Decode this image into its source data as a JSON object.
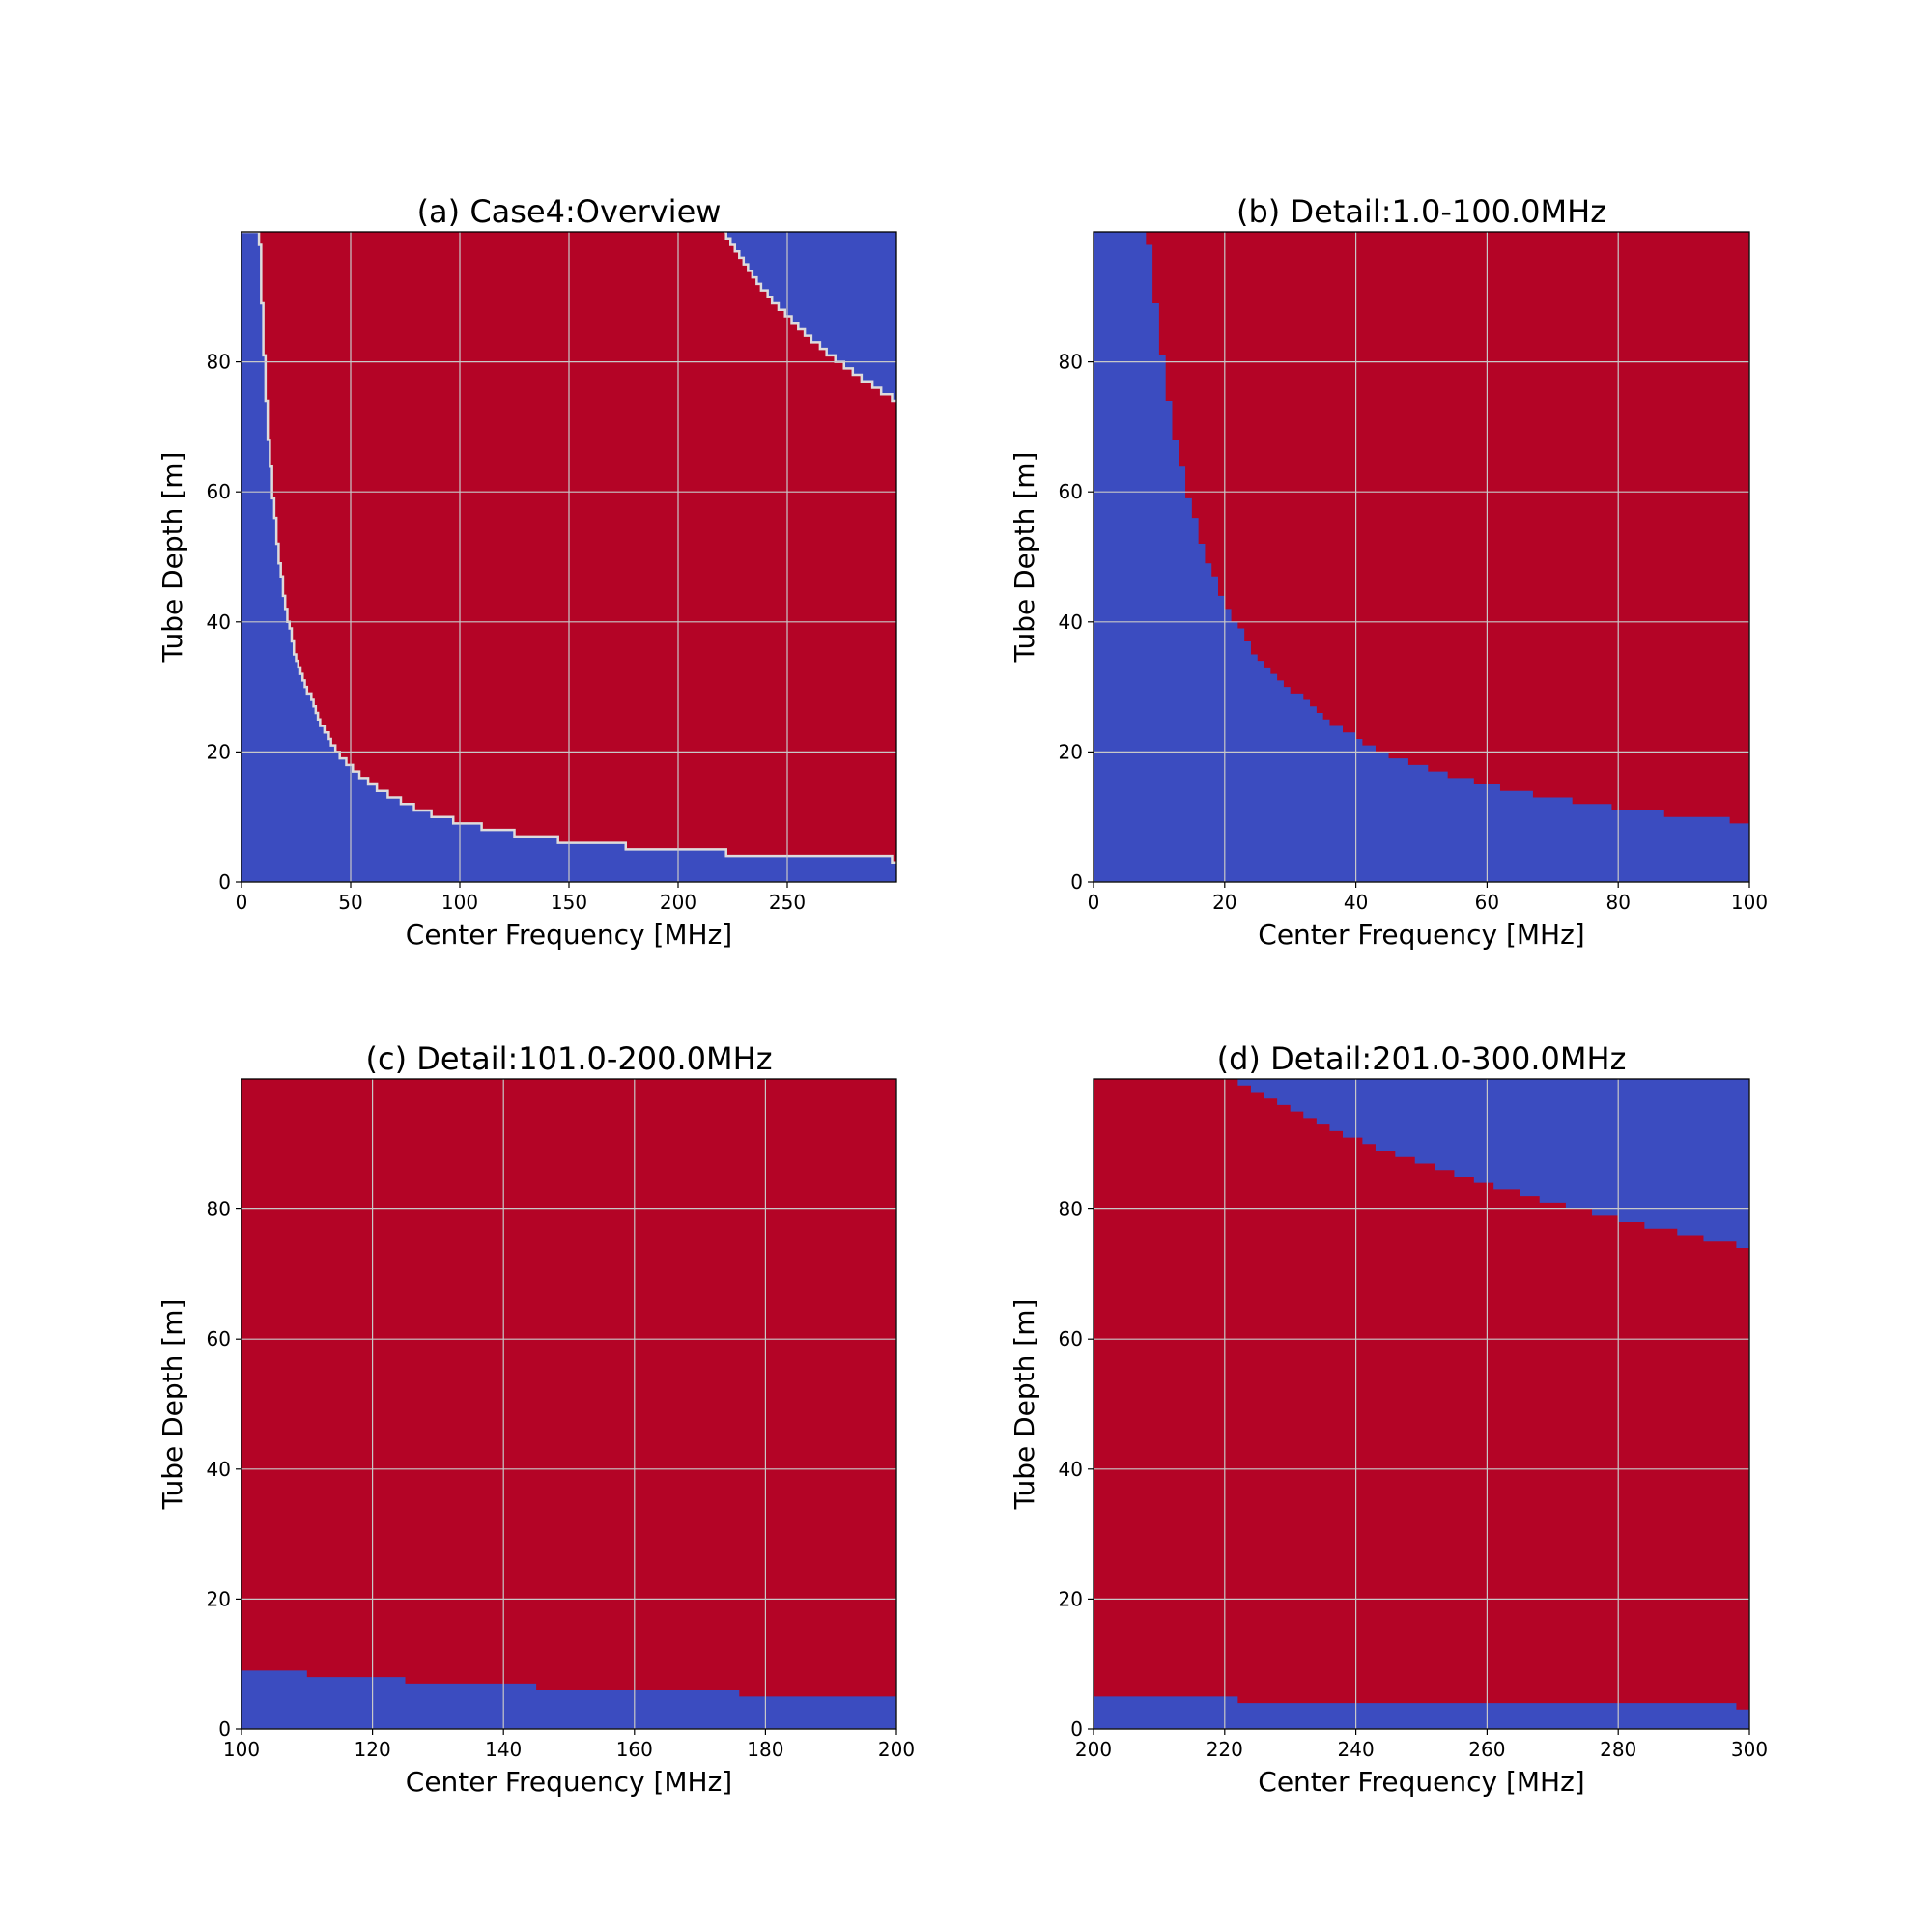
{
  "colors": {
    "low": "#3b4cc0",
    "high": "#b40426",
    "grid": "#c8c8c8",
    "boundary": "#dddcdc"
  },
  "chart_data": [
    {
      "type": "heatmap",
      "title": "(a) Case4:Overview",
      "xlabel": "Center Frequency [MHz]",
      "ylabel": "Tube Depth [m]",
      "xlim": [
        0,
        300
      ],
      "ylim": [
        0,
        100
      ],
      "xticks": [
        0,
        50,
        100,
        150,
        200,
        250
      ],
      "yticks": [
        0,
        20,
        40,
        60,
        80
      ],
      "grid": true,
      "show_boundary_line": true,
      "regions": "blue below lower boundary and above upper boundary, red in between"
    },
    {
      "type": "heatmap",
      "title": "(b) Detail:1.0-100.0MHz",
      "xlabel": "Center Frequency [MHz]",
      "ylabel": "Tube Depth [m]",
      "xlim": [
        0,
        100
      ],
      "ylim": [
        0,
        100
      ],
      "xticks": [
        0,
        20,
        40,
        60,
        80,
        100
      ],
      "yticks": [
        0,
        20,
        40,
        60,
        80
      ],
      "grid": true,
      "show_boundary_line": false
    },
    {
      "type": "heatmap",
      "title": "(c) Detail:101.0-200.0MHz",
      "xlabel": "Center Frequency [MHz]",
      "ylabel": "Tube Depth [m]",
      "xlim": [
        100,
        200
      ],
      "ylim": [
        0,
        100
      ],
      "xticks": [
        100,
        120,
        140,
        160,
        180,
        200
      ],
      "yticks": [
        0,
        20,
        40,
        60,
        80
      ],
      "grid": true,
      "show_boundary_line": false
    },
    {
      "type": "heatmap",
      "title": "(d) Detail:201.0-300.0MHz",
      "xlabel": "Center Frequency [MHz]",
      "ylabel": "Tube Depth [m]",
      "xlim": [
        200,
        300
      ],
      "ylim": [
        0,
        100
      ],
      "xticks": [
        200,
        220,
        240,
        260,
        280,
        300
      ],
      "yticks": [
        0,
        20,
        40,
        60,
        80
      ],
      "grid": true,
      "show_boundary_line": false
    }
  ],
  "boundaries": {
    "lower": [
      [
        0,
        100
      ],
      [
        8,
        100
      ],
      [
        8,
        98
      ],
      [
        9,
        98
      ],
      [
        9,
        89
      ],
      [
        10,
        89
      ],
      [
        10,
        81
      ],
      [
        11,
        81
      ],
      [
        11,
        74
      ],
      [
        12,
        74
      ],
      [
        12,
        68
      ],
      [
        13,
        68
      ],
      [
        13,
        64
      ],
      [
        14,
        64
      ],
      [
        14,
        59
      ],
      [
        15,
        59
      ],
      [
        15,
        56
      ],
      [
        16,
        56
      ],
      [
        16,
        52
      ],
      [
        17,
        52
      ],
      [
        17,
        49
      ],
      [
        18,
        49
      ],
      [
        18,
        47
      ],
      [
        19,
        47
      ],
      [
        19,
        44
      ],
      [
        20,
        44
      ],
      [
        20,
        42
      ],
      [
        21,
        42
      ],
      [
        21,
        40
      ],
      [
        22,
        40
      ],
      [
        22,
        39
      ],
      [
        23,
        39
      ],
      [
        23,
        37
      ],
      [
        24,
        37
      ],
      [
        24,
        35
      ],
      [
        25,
        35
      ],
      [
        25,
        34
      ],
      [
        26,
        34
      ],
      [
        26,
        33
      ],
      [
        27,
        33
      ],
      [
        27,
        32
      ],
      [
        28,
        32
      ],
      [
        28,
        31
      ],
      [
        29,
        31
      ],
      [
        29,
        30
      ],
      [
        30,
        30
      ],
      [
        30,
        29
      ],
      [
        32,
        29
      ],
      [
        32,
        28
      ],
      [
        33,
        28
      ],
      [
        33,
        27
      ],
      [
        34,
        27
      ],
      [
        34,
        26
      ],
      [
        35,
        26
      ],
      [
        35,
        25
      ],
      [
        36,
        25
      ],
      [
        36,
        24
      ],
      [
        38,
        24
      ],
      [
        38,
        23
      ],
      [
        40,
        23
      ],
      [
        40,
        22
      ],
      [
        41,
        22
      ],
      [
        41,
        21
      ],
      [
        43,
        21
      ],
      [
        43,
        20
      ],
      [
        45,
        20
      ],
      [
        45,
        19
      ],
      [
        48,
        19
      ],
      [
        48,
        18
      ],
      [
        51,
        18
      ],
      [
        51,
        17
      ],
      [
        54,
        17
      ],
      [
        54,
        16
      ],
      [
        58,
        16
      ],
      [
        58,
        15
      ],
      [
        62,
        15
      ],
      [
        62,
        14
      ],
      [
        67,
        14
      ],
      [
        67,
        13
      ],
      [
        73,
        13
      ],
      [
        73,
        12
      ],
      [
        79,
        12
      ],
      [
        79,
        11
      ],
      [
        87,
        11
      ],
      [
        87,
        10
      ],
      [
        97,
        10
      ],
      [
        97,
        9
      ],
      [
        100,
        9
      ],
      [
        110,
        9
      ],
      [
        110,
        8
      ],
      [
        125,
        8
      ],
      [
        125,
        7
      ],
      [
        145,
        7
      ],
      [
        145,
        6
      ],
      [
        176,
        6
      ],
      [
        176,
        5
      ],
      [
        222,
        5
      ],
      [
        222,
        4
      ],
      [
        298,
        4
      ],
      [
        298,
        3
      ],
      [
        300,
        3
      ]
    ],
    "upper": [
      [
        221,
        100
      ],
      [
        222,
        100
      ],
      [
        222,
        99
      ],
      [
        224,
        99
      ],
      [
        224,
        98
      ],
      [
        226,
        98
      ],
      [
        226,
        97
      ],
      [
        228,
        97
      ],
      [
        228,
        96
      ],
      [
        230,
        96
      ],
      [
        230,
        95
      ],
      [
        232,
        95
      ],
      [
        232,
        94
      ],
      [
        234,
        94
      ],
      [
        234,
        93
      ],
      [
        236,
        93
      ],
      [
        236,
        92
      ],
      [
        238,
        92
      ],
      [
        238,
        91
      ],
      [
        241,
        91
      ],
      [
        241,
        90
      ],
      [
        243,
        90
      ],
      [
        243,
        89
      ],
      [
        246,
        89
      ],
      [
        246,
        88
      ],
      [
        249,
        88
      ],
      [
        249,
        87
      ],
      [
        252,
        87
      ],
      [
        252,
        86
      ],
      [
        255,
        86
      ],
      [
        255,
        85
      ],
      [
        258,
        85
      ],
      [
        258,
        84
      ],
      [
        261,
        84
      ],
      [
        261,
        83
      ],
      [
        265,
        83
      ],
      [
        265,
        82
      ],
      [
        268,
        82
      ],
      [
        268,
        81
      ],
      [
        272,
        81
      ],
      [
        272,
        80
      ],
      [
        276,
        80
      ],
      [
        276,
        79
      ],
      [
        280,
        79
      ],
      [
        280,
        78
      ],
      [
        284,
        78
      ],
      [
        284,
        77
      ],
      [
        289,
        77
      ],
      [
        289,
        76
      ],
      [
        293,
        76
      ],
      [
        293,
        75
      ],
      [
        298,
        75
      ],
      [
        298,
        74
      ],
      [
        300,
        74
      ]
    ]
  }
}
